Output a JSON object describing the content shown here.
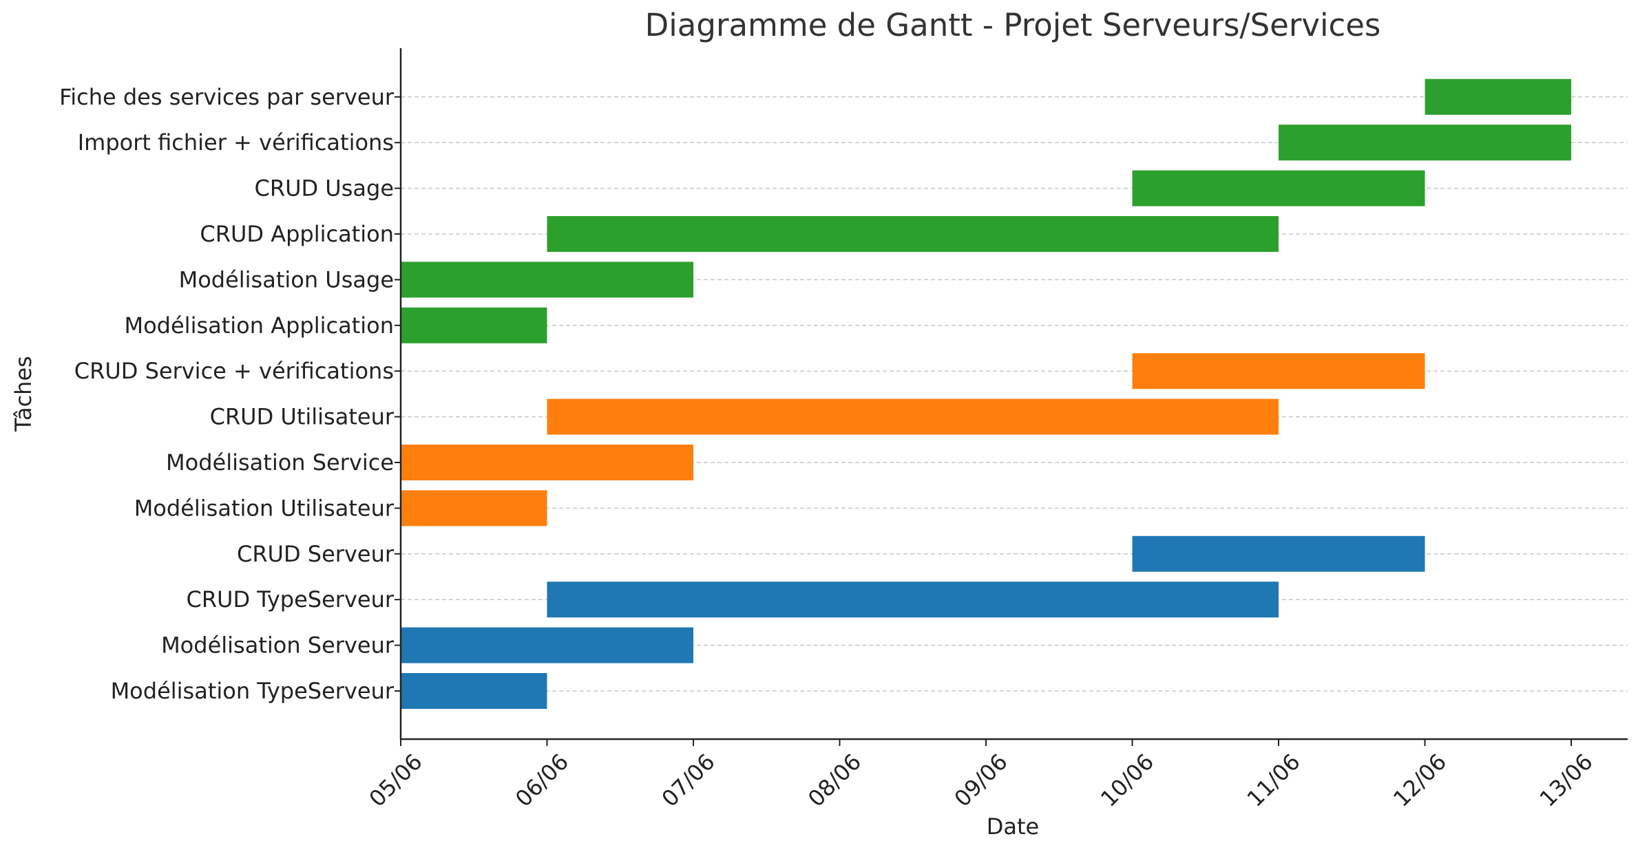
{
  "chart_data": {
    "type": "bar",
    "orientation": "horizontal",
    "title": "Diagramme de Gantt - Projet Serveurs/Services",
    "xlabel": "Date",
    "ylabel": "Tâches",
    "x_ticks": [
      "05/06",
      "06/06",
      "07/06",
      "08/06",
      "09/06",
      "10/06",
      "11/06",
      "12/06",
      "13/06"
    ],
    "xlim": [
      "05/06",
      "13/06"
    ],
    "grid": "horizontal dashed",
    "series_colors": {
      "serveurs": "#1f77b4",
      "utilisateurs_services": "#ff7f0e",
      "applications_usages": "#2ca02c"
    },
    "tasks": [
      {
        "name": "Modélisation TypeServeur",
        "start": "05/06",
        "end": "06/06",
        "color": "#1f77b4"
      },
      {
        "name": "Modélisation Serveur",
        "start": "05/06",
        "end": "07/06",
        "color": "#1f77b4"
      },
      {
        "name": "CRUD TypeServeur",
        "start": "06/06",
        "end": "11/06",
        "color": "#1f77b4"
      },
      {
        "name": "CRUD Serveur",
        "start": "10/06",
        "end": "12/06",
        "color": "#1f77b4"
      },
      {
        "name": "Modélisation Utilisateur",
        "start": "05/06",
        "end": "06/06",
        "color": "#ff7f0e"
      },
      {
        "name": "Modélisation Service",
        "start": "05/06",
        "end": "07/06",
        "color": "#ff7f0e"
      },
      {
        "name": "CRUD Utilisateur",
        "start": "06/06",
        "end": "11/06",
        "color": "#ff7f0e"
      },
      {
        "name": "CRUD Service + vérifications",
        "start": "10/06",
        "end": "12/06",
        "color": "#ff7f0e"
      },
      {
        "name": "Modélisation Application",
        "start": "05/06",
        "end": "06/06",
        "color": "#2ca02c"
      },
      {
        "name": "Modélisation Usage",
        "start": "05/06",
        "end": "07/06",
        "color": "#2ca02c"
      },
      {
        "name": "CRUD Application",
        "start": "06/06",
        "end": "11/06",
        "color": "#2ca02c"
      },
      {
        "name": "CRUD Usage",
        "start": "10/06",
        "end": "12/06",
        "color": "#2ca02c"
      },
      {
        "name": "Import fichier + vérifications",
        "start": "11/06",
        "end": "13/06",
        "color": "#2ca02c"
      },
      {
        "name": "Fiche des services par serveur",
        "start": "12/06",
        "end": "13/06",
        "color": "#2ca02c"
      }
    ]
  }
}
